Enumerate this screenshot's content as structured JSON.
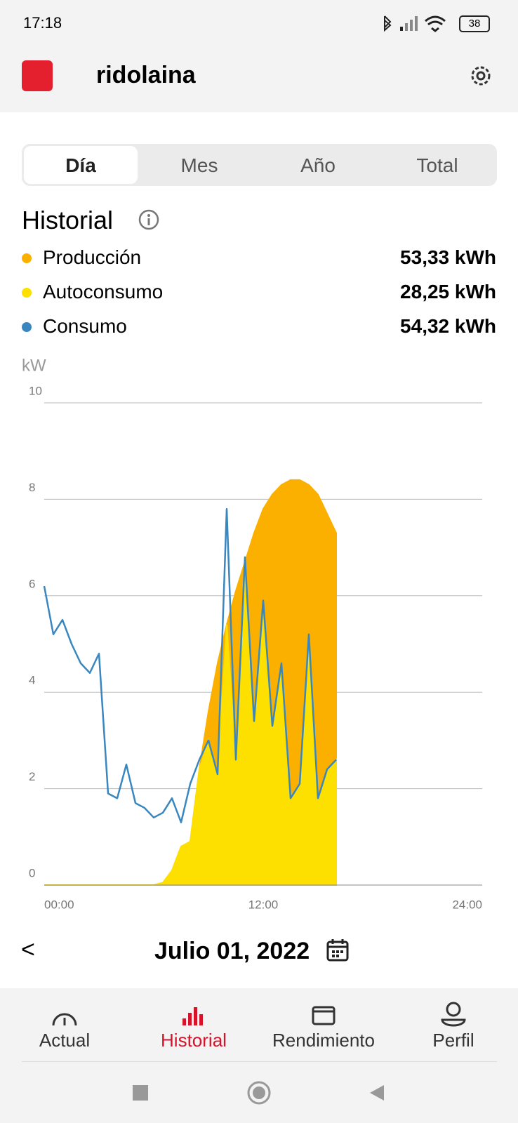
{
  "status_bar": {
    "time": "17:18",
    "battery": "38"
  },
  "header": {
    "title": "ridolaina"
  },
  "tabs": [
    "Día",
    "Mes",
    "Año",
    "Total"
  ],
  "section_title": "Historial",
  "chart_data": {
    "type": "area",
    "y_label": "kW",
    "x": [
      0,
      0.5,
      1,
      1.5,
      2,
      2.5,
      3,
      3.5,
      4,
      4.5,
      5,
      5.5,
      6,
      6.5,
      7,
      7.5,
      8,
      8.5,
      9,
      9.5,
      10,
      10.5,
      11,
      11.5,
      12,
      12.5,
      13,
      13.5,
      14,
      14.5,
      15,
      15.5,
      16
    ],
    "series": [
      {
        "name": "Producción",
        "total": "53,33 kWh",
        "color": "#fbb000",
        "type": "area",
        "values": [
          0,
          0,
          0,
          0,
          0,
          0,
          0,
          0,
          0,
          0,
          0,
          0,
          0,
          0.05,
          0.3,
          0.8,
          0.9,
          2.4,
          3.6,
          4.6,
          5.4,
          6.1,
          6.7,
          7.3,
          7.8,
          8.1,
          8.3,
          8.4,
          8.4,
          8.3,
          8.1,
          7.7,
          7.3
        ]
      },
      {
        "name": "Autoconsumo",
        "total": "28,25 kWh",
        "color": "#fde000",
        "type": "area",
        "values": [
          0,
          0,
          0,
          0,
          0,
          0,
          0,
          0,
          0,
          0,
          0,
          0,
          0,
          0.05,
          0.3,
          0.8,
          0.9,
          2.4,
          3.0,
          2.3,
          5.4,
          2.6,
          6.7,
          3.4,
          5.9,
          3.3,
          4.6,
          1.8,
          2.1,
          5.2,
          1.8,
          2.4,
          2.6
        ]
      },
      {
        "name": "Consumo",
        "total": "54,32 kWh",
        "color": "#3a87c0",
        "type": "line",
        "values": [
          6.2,
          5.2,
          5.5,
          5.0,
          4.6,
          4.4,
          4.8,
          1.9,
          1.8,
          2.5,
          1.7,
          1.6,
          1.4,
          1.5,
          1.8,
          1.3,
          2.1,
          2.6,
          3.0,
          2.3,
          7.8,
          2.6,
          6.8,
          3.4,
          5.9,
          3.3,
          4.6,
          1.8,
          2.1,
          5.2,
          1.8,
          2.4,
          2.6
        ]
      }
    ],
    "xlim": [
      0,
      24
    ],
    "xticks": [
      {
        "value": 0,
        "label": "00:00"
      },
      {
        "value": 12,
        "label": "12:00"
      },
      {
        "value": 24,
        "label": "24:00"
      }
    ],
    "ylim": [
      0,
      10
    ],
    "yticks": [
      0,
      2,
      4,
      6,
      8,
      10
    ],
    "grid": true
  },
  "date": "Julio 01, 2022",
  "nav": [
    "Actual",
    "Historial",
    "Rendimiento",
    "Perfil"
  ]
}
